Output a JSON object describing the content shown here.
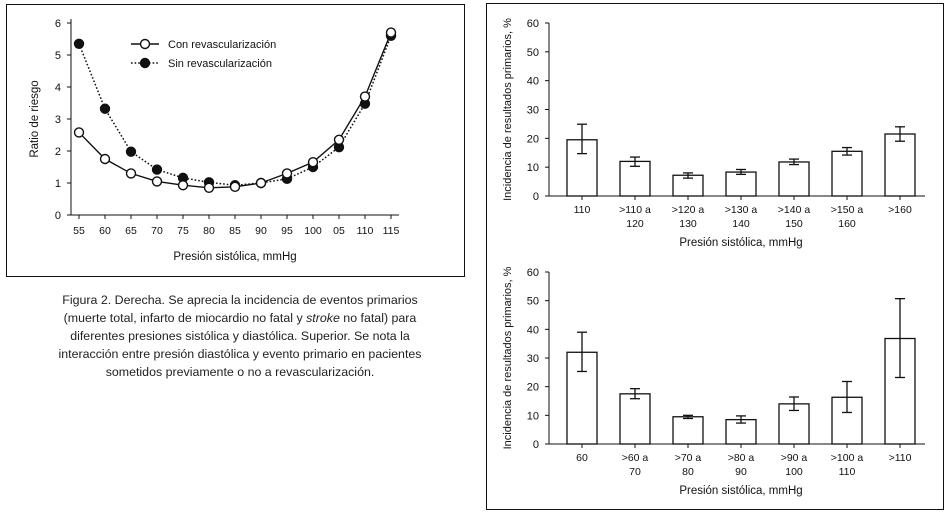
{
  "caption": {
    "line1": "Figura 2. Derecha. Se aprecia la incidencia de eventos primarios",
    "line2_pre": "(muerte total, infarto de miocardio no fatal y ",
    "line2_em": "stroke",
    "line2_post": " no fatal) para",
    "line3": "diferentes presiones sistólica y diastólica. Superior. Se nota la",
    "line4": "interacción entre presión diastólica y evento primario en pacientes",
    "line5": "sometidos previamente o no a revascularización."
  },
  "chart_data": [
    {
      "type": "line",
      "xlabel": "Presión sistólica, mmHg",
      "ylabel": "Ratio de riesgo",
      "ylim": [
        0,
        6
      ],
      "yticks": [
        "0",
        "1",
        "2",
        "3",
        "4",
        "5",
        "6"
      ],
      "x": [
        "55",
        "60",
        "65",
        "70",
        "75",
        "80",
        "85",
        "90",
        "95",
        "100",
        "05",
        "110",
        "115"
      ],
      "grid": false,
      "legend_position": "top-center",
      "series": [
        {
          "name": "Con revascularización",
          "marker": "open-circle",
          "line_style": "solid",
          "values": [
            2.58,
            1.75,
            1.3,
            1.05,
            0.93,
            0.85,
            0.88,
            1.0,
            1.3,
            1.65,
            2.35,
            3.7,
            5.7
          ]
        },
        {
          "name": "Sin revascularización",
          "marker": "filled-circle",
          "line_style": "dotted",
          "values": [
            5.35,
            3.32,
            1.98,
            1.42,
            1.16,
            1.02,
            0.93,
            1.0,
            1.13,
            1.5,
            2.12,
            3.48,
            5.6
          ]
        }
      ]
    },
    {
      "type": "bar",
      "xlabel": "Presión sistólica, mmHg",
      "ylabel": "Incidencia de resultados primarios, %",
      "ylim": [
        0,
        60
      ],
      "yticks": [
        "0",
        "10",
        "20",
        "30",
        "40",
        "50",
        "60"
      ],
      "categories": [
        [
          "110"
        ],
        [
          ">110 a",
          "120"
        ],
        [
          ">120 a",
          "130"
        ],
        [
          ">130 a",
          "140"
        ],
        [
          ">140 a",
          "150"
        ],
        [
          ">150 a",
          "160"
        ],
        [
          ">160"
        ]
      ],
      "values": [
        19.5,
        12,
        7.2,
        8.3,
        11.8,
        15.5,
        21.5
      ],
      "error_low": [
        14.7,
        10.3,
        6.2,
        7.5,
        10.9,
        14.2,
        19.0
      ],
      "error_high": [
        24.9,
        13.5,
        8.0,
        9.2,
        12.8,
        16.8,
        24.0
      ]
    },
    {
      "type": "bar",
      "xlabel": "Presión sistólica, mmHg",
      "ylabel": "Incidencia de resultados primarios, %",
      "ylim": [
        0,
        60
      ],
      "yticks": [
        "0",
        "10",
        "20",
        "30",
        "40",
        "50",
        "60"
      ],
      "categories": [
        [
          "60"
        ],
        [
          ">60 a",
          "70"
        ],
        [
          ">70 a",
          "80"
        ],
        [
          ">80 a",
          "90"
        ],
        [
          ">90 a",
          "100"
        ],
        [
          ">100 a",
          "110"
        ],
        [
          ">110"
        ]
      ],
      "values": [
        32,
        17.5,
        9.5,
        8.5,
        14,
        16.3,
        36.8
      ],
      "error_low": [
        25.3,
        15.8,
        8.9,
        7.3,
        11.7,
        11.0,
        23.2
      ],
      "error_high": [
        39.0,
        19.3,
        10.0,
        9.8,
        16.4,
        21.8,
        50.7
      ]
    }
  ]
}
